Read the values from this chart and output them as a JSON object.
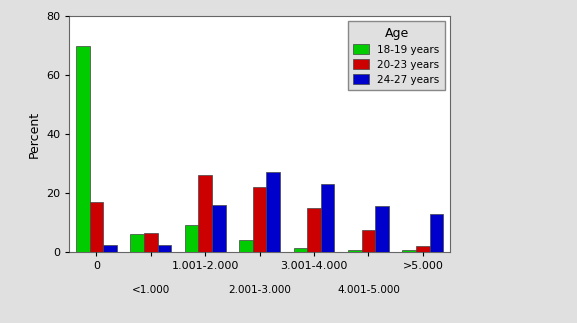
{
  "series": {
    "18-19 years": [
      70,
      6,
      9,
      4,
      1.5,
      0.5,
      0.5
    ],
    "20-23 years": [
      17,
      6.5,
      26,
      22,
      15,
      7.5,
      2
    ],
    "24-27 years": [
      2.5,
      2.5,
      16,
      27,
      23,
      15.5,
      13
    ]
  },
  "colors": {
    "18-19 years": "#00CC00",
    "20-23 years": "#CC0000",
    "24-27 years": "#0000CC"
  },
  "primary_labels": [
    "0",
    "",
    "1.001-2.000",
    "",
    "3.001-4.000",
    "",
    ">5.000"
  ],
  "secondary_labels": [
    "",
    "<1.000",
    "",
    "2.001-3.000",
    "",
    "4.001-5.000",
    ""
  ],
  "ylabel": "Percent",
  "ylim": [
    0,
    80
  ],
  "yticks": [
    0,
    20,
    40,
    60,
    80
  ],
  "legend_title": "Age",
  "bar_width": 0.25,
  "background_color": "#e0e0e0"
}
